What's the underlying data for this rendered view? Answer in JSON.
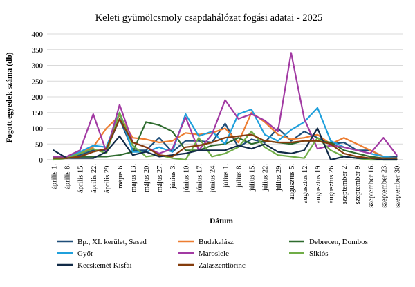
{
  "chart_data": {
    "type": "line",
    "title": "Keleti gyümölcsmoly csapdahálózat fogási adatai - 2025",
    "xlabel": "Dátum",
    "ylabel": "Fogott egyedek száma (db)",
    "ylim": [
      0,
      400
    ],
    "yticks": [
      0,
      50,
      100,
      150,
      200,
      250,
      300,
      350,
      400
    ],
    "grid": true,
    "legend_position": "bottom",
    "categories": [
      "április 1.",
      "április 8.",
      "április 15.",
      "április 22.",
      "április 29.",
      "május 6.",
      "május 13.",
      "május 20.",
      "május 27.",
      "június 3.",
      "június 10.",
      "június 17.",
      "június 24.",
      "július 1.",
      "július 8.",
      "július 15.",
      "július 22.",
      "július 29.",
      "augusztus 5.",
      "augusztus 12.",
      "augusztus 19.",
      "augusztus 26.",
      "szeptember 2.",
      "szeptember 9.",
      "szeptember 16.",
      "szeptember 23.",
      "szeptember 30."
    ],
    "series": [
      {
        "name": "Bp., XI. kerület, Sasad",
        "color": "#1f4e79",
        "values": [
          5,
          10,
          15,
          30,
          30,
          130,
          30,
          30,
          70,
          25,
          60,
          60,
          55,
          115,
          40,
          65,
          55,
          100,
          60,
          90,
          70,
          50,
          55,
          30,
          30,
          10,
          10
        ]
      },
      {
        "name": "Budakalász",
        "color": "#ed7d31",
        "values": [
          10,
          10,
          20,
          40,
          100,
          140,
          70,
          65,
          55,
          60,
          85,
          80,
          85,
          100,
          55,
          150,
          120,
          80,
          65,
          70,
          80,
          50,
          70,
          50,
          30,
          10,
          5
        ]
      },
      {
        "name": "Debrecen, Dombos",
        "color": "#2e6b2e",
        "values": [
          5,
          5,
          10,
          10,
          10,
          15,
          25,
          120,
          110,
          90,
          30,
          30,
          45,
          50,
          70,
          50,
          60,
          55,
          50,
          60,
          60,
          55,
          30,
          20,
          10,
          5,
          0
        ]
      },
      {
        "name": "Győr",
        "color": "#1fa0dc",
        "values": [
          5,
          10,
          25,
          45,
          40,
          150,
          25,
          25,
          40,
          25,
          145,
          75,
          90,
          50,
          145,
          160,
          80,
          60,
          95,
          120,
          165,
          60,
          40,
          30,
          20,
          10,
          5
        ]
      },
      {
        "name": "Maroslele",
        "color": "#a23aa3",
        "values": [
          10,
          10,
          30,
          145,
          25,
          175,
          55,
          40,
          20,
          35,
          135,
          30,
          80,
          190,
          130,
          145,
          125,
          90,
          340,
          130,
          35,
          45,
          40,
          30,
          20,
          70,
          15
        ]
      },
      {
        "name": "Siklós",
        "color": "#70ad47",
        "values": [
          0,
          5,
          20,
          35,
          20,
          150,
          45,
          10,
          15,
          5,
          0,
          70,
          10,
          20,
          40,
          90,
          40,
          15,
          10,
          5,
          70,
          30,
          10,
          5,
          0,
          0,
          0
        ]
      },
      {
        "name": "Kecskemét Kisfái",
        "color": "#112a47",
        "values": [
          30,
          5,
          5,
          5,
          25,
          75,
          15,
          25,
          10,
          15,
          20,
          30,
          30,
          30,
          45,
          35,
          50,
          25,
          20,
          30,
          100,
          0,
          10,
          5,
          5,
          0,
          0
        ]
      },
      {
        "name": "Zalaszentlőrinc",
        "color": "#843c0c",
        "values": [
          5,
          5,
          10,
          25,
          35,
          130,
          55,
          40,
          15,
          10,
          40,
          45,
          55,
          70,
          75,
          80,
          60,
          55,
          55,
          60,
          60,
          50,
          20,
          10,
          5,
          5,
          5
        ]
      }
    ]
  }
}
